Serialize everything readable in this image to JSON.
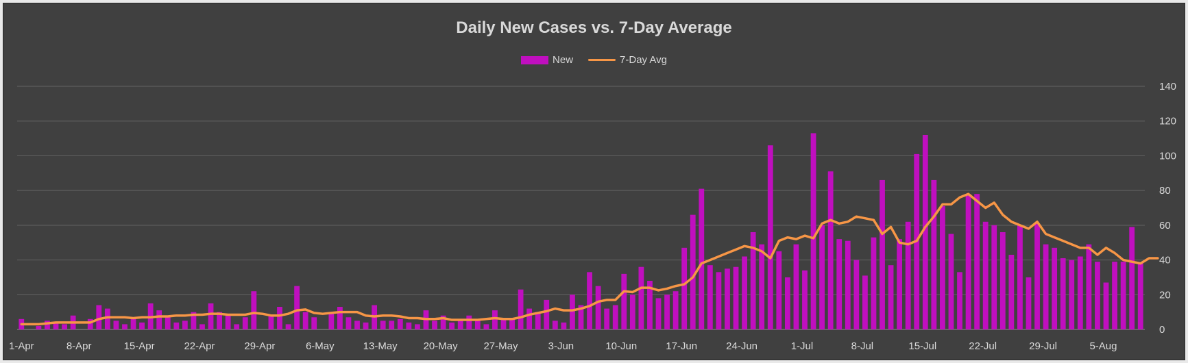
{
  "chart_data": {
    "type": "bar+line",
    "title": "Daily New Cases vs. 7-Day Average",
    "legend": {
      "position": "top",
      "entries": [
        "New",
        "7-Day Avg"
      ]
    },
    "y_axis": {
      "position": "right",
      "min": 0,
      "max": 140,
      "step": 20,
      "grid": true
    },
    "x_tick_labels": [
      "1-Apr",
      "8-Apr",
      "15-Apr",
      "22-Apr",
      "29-Apr",
      "6-May",
      "13-May",
      "20-May",
      "27-May",
      "3-Jun",
      "10-Jun",
      "17-Jun",
      "24-Jun",
      "1-Jul",
      "8-Jul",
      "15-Jul",
      "22-Jul",
      "29-Jul",
      "5-Aug"
    ],
    "x_tick_every_days": 7,
    "series": [
      {
        "name": "New",
        "type": "bar",
        "color": "#c00fbf",
        "values": [
          6,
          0,
          2,
          5,
          4,
          3,
          8,
          0,
          6,
          14,
          12,
          5,
          3,
          6,
          4,
          15,
          11,
          7,
          4,
          5,
          10,
          3,
          15,
          10,
          8,
          3,
          7,
          22,
          0,
          8,
          13,
          3,
          25,
          10,
          7,
          0,
          9,
          13,
          7,
          5,
          4,
          14,
          5,
          5,
          6,
          4,
          3,
          11,
          5,
          8,
          4,
          5,
          8,
          6,
          3,
          11,
          6,
          6,
          23,
          12,
          10,
          17,
          5,
          4,
          20,
          14,
          33,
          25,
          12,
          14,
          32,
          20,
          36,
          28,
          18,
          20,
          22,
          47,
          66,
          81,
          37,
          33,
          35,
          36,
          42,
          56,
          49,
          106,
          45,
          30,
          49,
          34,
          113,
          60,
          91,
          52,
          51,
          40,
          31,
          53,
          86,
          37,
          52,
          62,
          101,
          112,
          86,
          71,
          55,
          33,
          78,
          78,
          62,
          60,
          56,
          43,
          60,
          30,
          61,
          49,
          47,
          41,
          40,
          42,
          49,
          39,
          27,
          39,
          39,
          59,
          38
        ]
      },
      {
        "name": "7-Day Avg",
        "type": "line",
        "color": "#f79646",
        "values": [
          3,
          3,
          3,
          3.5,
          4,
          4,
          4,
          4,
          4,
          6,
          7,
          7,
          7,
          6.5,
          7,
          7,
          7.5,
          7.5,
          8,
          8,
          8.5,
          8.5,
          9,
          9,
          8.5,
          8.5,
          8.5,
          9.5,
          9,
          8,
          8,
          9,
          11,
          11.5,
          9.5,
          9,
          9.5,
          10,
          10,
          10,
          8,
          7.5,
          8,
          8,
          7.5,
          6.5,
          6.5,
          6,
          6,
          6.5,
          5.5,
          5.5,
          5.5,
          5.5,
          6,
          6.5,
          6,
          6,
          7,
          8.5,
          9.5,
          10.5,
          12,
          11,
          11,
          12,
          13.5,
          16,
          17,
          17,
          22,
          21.5,
          24,
          24,
          22.5,
          23.5,
          25,
          26,
          30,
          38,
          40,
          42,
          44,
          46,
          48,
          47,
          45,
          41,
          51,
          53,
          52,
          54,
          52.5,
          61,
          63,
          61,
          62,
          65,
          64,
          63,
          55,
          59,
          50,
          49,
          51,
          59,
          65,
          72,
          72,
          76,
          78,
          74,
          70,
          73,
          66,
          62,
          60,
          58,
          62,
          55,
          53,
          51,
          49,
          47,
          47,
          43,
          47,
          44,
          40,
          39,
          38,
          41,
          41
        ]
      }
    ]
  }
}
